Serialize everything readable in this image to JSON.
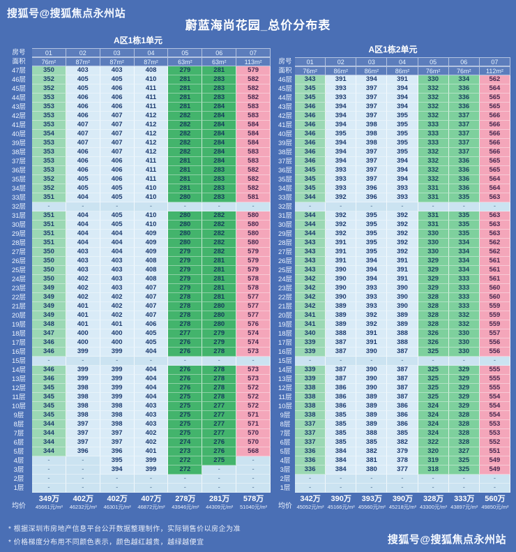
{
  "header": {
    "watermark": "搜狐号@搜狐焦点永州站",
    "title": "蔚蓝海尚花园_总价分布表"
  },
  "labels": {
    "room": "房号",
    "area": "面积",
    "avg": "均价"
  },
  "footer": {
    "footnotes": [
      "* 根据深圳市房地产信息平台公开数据整理制作，实际销售价以房企为准",
      "* 价格梯度分布用不同颜色表示，颜色越红越贵，越绿越便宜"
    ],
    "watermark": "搜狐号@搜狐焦点永州站"
  },
  "colors": {
    "background": "#4a6fb5",
    "cheap_green_dark": "#43b46c",
    "cheap_green_light": "#7ed09d",
    "mint": "#9bd8b4",
    "pale_blue": "#d9ebf7",
    "expensive_pink": "#f4a6ba",
    "empty_cell": "#cbe3f1",
    "cell_text": "#1c3a6e"
  },
  "chart_data": [
    {
      "type": "table",
      "title": "A区1栋1单元",
      "columns": [
        "01",
        "02",
        "03",
        "04",
        "05",
        "06",
        "07"
      ],
      "areas": [
        "76m²",
        "87m²",
        "87m²",
        "87m²",
        "63m²",
        "63m²",
        "113m²"
      ],
      "col_classes": [
        "mint",
        "pale",
        "pale",
        "pale",
        "green1",
        "green1",
        "pink"
      ],
      "rows": [
        [
          "47层",
          "350",
          "403",
          "403",
          "408",
          "279",
          "281",
          "579"
        ],
        [
          "46层",
          "352",
          "405",
          "405",
          "410",
          "281",
          "283",
          "582"
        ],
        [
          "45层",
          "352",
          "405",
          "406",
          "411",
          "281",
          "283",
          "582"
        ],
        [
          "44层",
          "353",
          "406",
          "406",
          "411",
          "281",
          "283",
          "582"
        ],
        [
          "43层",
          "353",
          "406",
          "406",
          "411",
          "281",
          "284",
          "583"
        ],
        [
          "42层",
          "353",
          "406",
          "407",
          "412",
          "282",
          "284",
          "583"
        ],
        [
          "41层",
          "353",
          "407",
          "407",
          "412",
          "282",
          "284",
          "584"
        ],
        [
          "40层",
          "354",
          "407",
          "407",
          "412",
          "282",
          "284",
          "584"
        ],
        [
          "39层",
          "353",
          "407",
          "407",
          "412",
          "282",
          "284",
          "584"
        ],
        [
          "38层",
          "353",
          "406",
          "407",
          "412",
          "282",
          "284",
          "583"
        ],
        [
          "37层",
          "353",
          "406",
          "406",
          "411",
          "281",
          "284",
          "583"
        ],
        [
          "36层",
          "353",
          "406",
          "406",
          "411",
          "281",
          "283",
          "582"
        ],
        [
          "35层",
          "352",
          "405",
          "406",
          "411",
          "281",
          "283",
          "582"
        ],
        [
          "34层",
          "352",
          "405",
          "405",
          "410",
          "281",
          "283",
          "582"
        ],
        [
          "33层",
          "351",
          "404",
          "405",
          "410",
          "280",
          "283",
          "581"
        ],
        [
          "32层",
          "-",
          "-",
          "-",
          "-",
          "-",
          "-",
          "-"
        ],
        [
          "31层",
          "351",
          "404",
          "405",
          "410",
          "280",
          "282",
          "580"
        ],
        [
          "30层",
          "351",
          "404",
          "405",
          "410",
          "280",
          "282",
          "580"
        ],
        [
          "29层",
          "351",
          "404",
          "404",
          "409",
          "280",
          "282",
          "580"
        ],
        [
          "28层",
          "351",
          "404",
          "404",
          "409",
          "280",
          "282",
          "580"
        ],
        [
          "27层",
          "350",
          "403",
          "404",
          "409",
          "279",
          "282",
          "579"
        ],
        [
          "26层",
          "350",
          "403",
          "403",
          "408",
          "279",
          "281",
          "579"
        ],
        [
          "25层",
          "350",
          "403",
          "403",
          "408",
          "279",
          "281",
          "579"
        ],
        [
          "24层",
          "350",
          "402",
          "403",
          "408",
          "279",
          "281",
          "578"
        ],
        [
          "23层",
          "349",
          "402",
          "403",
          "407",
          "279",
          "281",
          "578"
        ],
        [
          "22层",
          "349",
          "402",
          "402",
          "407",
          "278",
          "281",
          "577"
        ],
        [
          "21层",
          "349",
          "401",
          "402",
          "407",
          "278",
          "280",
          "577"
        ],
        [
          "20层",
          "349",
          "401",
          "402",
          "407",
          "278",
          "280",
          "577"
        ],
        [
          "19层",
          "348",
          "401",
          "401",
          "406",
          "278",
          "280",
          "576"
        ],
        [
          "18层",
          "347",
          "400",
          "400",
          "405",
          "277",
          "279",
          "574"
        ],
        [
          "17层",
          "346",
          "400",
          "400",
          "405",
          "276",
          "279",
          "574"
        ],
        [
          "16层",
          "346",
          "399",
          "399",
          "404",
          "276",
          "278",
          "573"
        ],
        [
          "15层",
          "-",
          "-",
          "-",
          "-",
          "-",
          "-",
          "-"
        ],
        [
          "14层",
          "346",
          "399",
          "399",
          "404",
          "276",
          "278",
          "573"
        ],
        [
          "13层",
          "346",
          "399",
          "399",
          "404",
          "276",
          "278",
          "573"
        ],
        [
          "12层",
          "345",
          "398",
          "399",
          "404",
          "276",
          "278",
          "572"
        ],
        [
          "11层",
          "345",
          "398",
          "399",
          "404",
          "275",
          "278",
          "572"
        ],
        [
          "10层",
          "345",
          "398",
          "398",
          "403",
          "275",
          "277",
          "572"
        ],
        [
          "9层",
          "345",
          "398",
          "398",
          "403",
          "275",
          "277",
          "571"
        ],
        [
          "8层",
          "344",
          "397",
          "398",
          "403",
          "275",
          "277",
          "571"
        ],
        [
          "7层",
          "344",
          "397",
          "397",
          "402",
          "275",
          "277",
          "570"
        ],
        [
          "6层",
          "344",
          "397",
          "397",
          "402",
          "274",
          "276",
          "570"
        ],
        [
          "5层",
          "344",
          "396",
          "396",
          "401",
          "273",
          "276",
          "568"
        ],
        [
          "4层",
          "-",
          "-",
          "395",
          "399",
          "272",
          "275",
          "-"
        ],
        [
          "3层",
          "-",
          "-",
          "394",
          "399",
          "272",
          "-",
          "-"
        ],
        [
          "2层",
          "-",
          "-",
          "-",
          "-",
          "-",
          "-",
          "-"
        ],
        [
          "1层",
          "-",
          "-",
          "-",
          "-",
          "-",
          "-",
          "-"
        ]
      ],
      "avg_totals": [
        "349万",
        "402万",
        "402万",
        "407万",
        "278万",
        "281万",
        "578万"
      ],
      "avg_units": [
        "45661元/m²",
        "46232元/m²",
        "46301元/m²",
        "46872元/m²",
        "43946元/m²",
        "44309元/m²",
        "51040元/m²"
      ]
    },
    {
      "type": "table",
      "title": "A区1栋2单元",
      "columns": [
        "01",
        "02",
        "03",
        "04",
        "05",
        "06",
        "07"
      ],
      "areas": [
        "76m²",
        "86m²",
        "86m²",
        "86m²",
        "76m²",
        "76m²",
        "112m²"
      ],
      "col_classes": [
        "mint",
        "pale",
        "pale",
        "pale",
        "green2",
        "green2",
        "pink"
      ],
      "rows": [
        [
          "46层",
          "343",
          "391",
          "394",
          "391",
          "330",
          "334",
          "562"
        ],
        [
          "45层",
          "345",
          "393",
          "397",
          "394",
          "332",
          "336",
          "564"
        ],
        [
          "44层",
          "345",
          "393",
          "397",
          "394",
          "332",
          "336",
          "565"
        ],
        [
          "43层",
          "346",
          "394",
          "397",
          "394",
          "332",
          "336",
          "565"
        ],
        [
          "42层",
          "346",
          "394",
          "397",
          "395",
          "332",
          "337",
          "566"
        ],
        [
          "41层",
          "346",
          "394",
          "398",
          "395",
          "333",
          "337",
          "566"
        ],
        [
          "40层",
          "346",
          "395",
          "398",
          "395",
          "333",
          "337",
          "566"
        ],
        [
          "39层",
          "346",
          "394",
          "398",
          "395",
          "333",
          "337",
          "566"
        ],
        [
          "38层",
          "346",
          "394",
          "397",
          "395",
          "332",
          "337",
          "566"
        ],
        [
          "37层",
          "346",
          "394",
          "397",
          "394",
          "332",
          "336",
          "565"
        ],
        [
          "36层",
          "345",
          "393",
          "397",
          "394",
          "332",
          "336",
          "565"
        ],
        [
          "35层",
          "345",
          "393",
          "397",
          "394",
          "332",
          "336",
          "564"
        ],
        [
          "34层",
          "345",
          "393",
          "396",
          "393",
          "331",
          "336",
          "564"
        ],
        [
          "33层",
          "344",
          "392",
          "396",
          "393",
          "331",
          "335",
          "563"
        ],
        [
          "32层",
          "-",
          "-",
          "-",
          "-",
          "-",
          "-",
          "-"
        ],
        [
          "31层",
          "344",
          "392",
          "395",
          "392",
          "331",
          "335",
          "563"
        ],
        [
          "30层",
          "344",
          "392",
          "395",
          "392",
          "331",
          "335",
          "563"
        ],
        [
          "29层",
          "344",
          "392",
          "395",
          "392",
          "330",
          "335",
          "563"
        ],
        [
          "28层",
          "343",
          "391",
          "395",
          "392",
          "330",
          "334",
          "562"
        ],
        [
          "27层",
          "343",
          "391",
          "395",
          "392",
          "330",
          "334",
          "562"
        ],
        [
          "26层",
          "343",
          "391",
          "394",
          "391",
          "329",
          "334",
          "561"
        ],
        [
          "25层",
          "343",
          "390",
          "394",
          "391",
          "329",
          "334",
          "561"
        ],
        [
          "24层",
          "342",
          "390",
          "394",
          "391",
          "329",
          "333",
          "561"
        ],
        [
          "23层",
          "342",
          "390",
          "393",
          "390",
          "329",
          "333",
          "560"
        ],
        [
          "22层",
          "342",
          "390",
          "393",
          "390",
          "328",
          "333",
          "560"
        ],
        [
          "21层",
          "342",
          "389",
          "393",
          "390",
          "328",
          "333",
          "559"
        ],
        [
          "20层",
          "341",
          "389",
          "392",
          "389",
          "328",
          "332",
          "559"
        ],
        [
          "19层",
          "341",
          "389",
          "392",
          "389",
          "328",
          "332",
          "559"
        ],
        [
          "18层",
          "340",
          "388",
          "391",
          "388",
          "326",
          "330",
          "557"
        ],
        [
          "17层",
          "339",
          "387",
          "391",
          "388",
          "326",
          "330",
          "556"
        ],
        [
          "16层",
          "339",
          "387",
          "390",
          "387",
          "325",
          "330",
          "556"
        ],
        [
          "15层",
          "-",
          "-",
          "-",
          "-",
          "-",
          "-",
          "-"
        ],
        [
          "14层",
          "339",
          "387",
          "390",
          "387",
          "325",
          "329",
          "555"
        ],
        [
          "13层",
          "339",
          "387",
          "390",
          "387",
          "325",
          "329",
          "555"
        ],
        [
          "12层",
          "338",
          "386",
          "390",
          "387",
          "325",
          "329",
          "555"
        ],
        [
          "11层",
          "338",
          "386",
          "389",
          "387",
          "325",
          "329",
          "554"
        ],
        [
          "10层",
          "338",
          "386",
          "389",
          "386",
          "324",
          "329",
          "554"
        ],
        [
          "9层",
          "338",
          "385",
          "389",
          "386",
          "324",
          "328",
          "554"
        ],
        [
          "8层",
          "337",
          "385",
          "389",
          "386",
          "324",
          "328",
          "553"
        ],
        [
          "7层",
          "337",
          "385",
          "388",
          "385",
          "324",
          "328",
          "553"
        ],
        [
          "6层",
          "337",
          "385",
          "385",
          "382",
          "322",
          "328",
          "552"
        ],
        [
          "5层",
          "336",
          "384",
          "382",
          "379",
          "320",
          "327",
          "551"
        ],
        [
          "4层",
          "336",
          "384",
          "381",
          "378",
          "319",
          "325",
          "549"
        ],
        [
          "3层",
          "336",
          "384",
          "380",
          "377",
          "318",
          "325",
          "549"
        ],
        [
          "2层",
          "-",
          "-",
          "-",
          "-",
          "-",
          "-",
          "-"
        ],
        [
          "1层",
          "-",
          "-",
          "-",
          "-",
          "-",
          "-",
          "-"
        ]
      ],
      "avg_totals": [
        "342万",
        "390万",
        "393万",
        "390万",
        "328万",
        "333万",
        "560万"
      ],
      "avg_units": [
        "45052元/m²",
        "45166元/m²",
        "45560元/m²",
        "45218元/m²",
        "43300元/m²",
        "43897元/m²",
        "49850元/m²"
      ]
    }
  ]
}
